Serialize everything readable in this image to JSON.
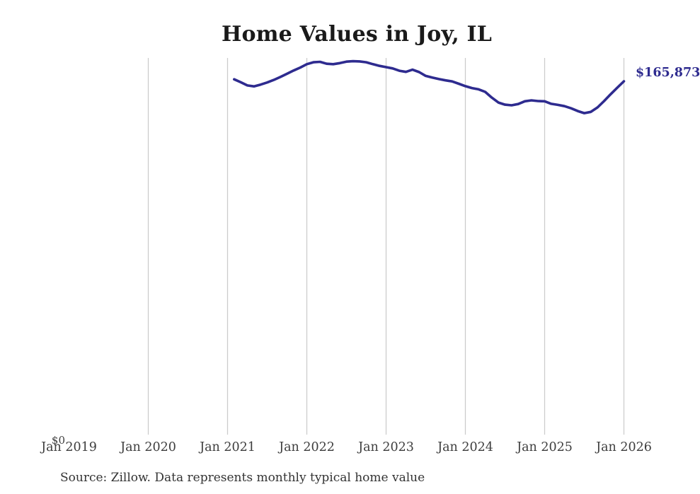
{
  "title": "Home Values in Joy, IL",
  "source": "Source: Zillow. Data represents monthly typical home value",
  "colors": {
    "line": "#2e2b8f",
    "grid": "#cccccc",
    "title_text": "#1a1a1a",
    "axis_text": "#3d3d3d",
    "source_text": "#333333",
    "background": "#ffffff"
  },
  "chart_data": {
    "type": "line",
    "title": "Home Values in Joy, IL",
    "xlabel": "",
    "ylabel": "",
    "legend": "none",
    "grid": "vertical-yearly",
    "y_axis": {
      "min": 0,
      "min_label": "$0"
    },
    "x_ticks": [
      {
        "label": "Jan 2019",
        "gridline": false
      },
      {
        "label": "Jan 2020",
        "gridline": true
      },
      {
        "label": "Jan 2021",
        "gridline": true
      },
      {
        "label": "Jan 2022",
        "gridline": true
      },
      {
        "label": "Jan 2023",
        "gridline": true
      },
      {
        "label": "Jan 2024",
        "gridline": true
      },
      {
        "label": "Jan 2025",
        "gridline": true
      },
      {
        "label": "Jan 2026",
        "gridline": true
      }
    ],
    "end_value": 165873,
    "end_value_label": "$165,873",
    "series": [
      {
        "name": "Monthly typical home value",
        "months": [
          "2021-02",
          "2021-03",
          "2021-04",
          "2021-05",
          "2021-06",
          "2021-07",
          "2021-08",
          "2021-09",
          "2021-10",
          "2021-11",
          "2021-12",
          "2022-01",
          "2022-02",
          "2022-03",
          "2022-04",
          "2022-05",
          "2022-06",
          "2022-07",
          "2022-08",
          "2022-09",
          "2022-10",
          "2022-11",
          "2022-12",
          "2023-01",
          "2023-02",
          "2023-03",
          "2023-04",
          "2023-05",
          "2023-06",
          "2023-07",
          "2023-08",
          "2023-09",
          "2023-10",
          "2023-11",
          "2023-12",
          "2024-01",
          "2024-02",
          "2024-03",
          "2024-04",
          "2024-05",
          "2024-06",
          "2024-07",
          "2024-08",
          "2024-09",
          "2024-10",
          "2024-11",
          "2024-12",
          "2025-01",
          "2025-02",
          "2025-03",
          "2025-04",
          "2025-05",
          "2025-06",
          "2025-07",
          "2025-08",
          "2025-09",
          "2025-10",
          "2025-11",
          "2025-12",
          "2026-01"
        ],
        "values": [
          166800,
          165400,
          163900,
          163500,
          164300,
          165300,
          166500,
          167900,
          169400,
          170900,
          172300,
          173900,
          174800,
          175000,
          174100,
          173900,
          174400,
          175100,
          175300,
          175200,
          174800,
          173900,
          173100,
          172500,
          171900,
          170800,
          170300,
          171300,
          170200,
          168400,
          167600,
          166900,
          166300,
          165800,
          164700,
          163600,
          162700,
          162100,
          160900,
          158200,
          155900,
          154900,
          154600,
          155200,
          156500,
          156900,
          156600,
          156500,
          155300,
          154800,
          154200,
          153200,
          151900,
          150900,
          151500,
          153600,
          156600,
          159800,
          162900,
          165873
        ]
      }
    ]
  }
}
